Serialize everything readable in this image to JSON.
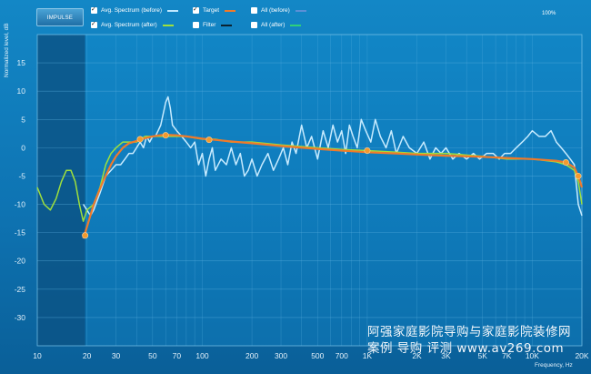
{
  "toolbar": {
    "impulse_label": "IMPULSE",
    "zoom_label": "100%"
  },
  "legend": [
    {
      "label": "Avg. Spectrum (before)",
      "checked": true,
      "color": "#bfe8ff"
    },
    {
      "label": "Target",
      "checked": true,
      "color": "#f07a2a"
    },
    {
      "label": "All (before)",
      "checked": false,
      "color": "#5b8fd6"
    },
    {
      "label": "Avg. Spectrum (after)",
      "checked": true,
      "color": "#9fe03c"
    },
    {
      "label": "Filter",
      "checked": false,
      "color": "#0a2230"
    },
    {
      "label": "All (after)",
      "checked": false,
      "color": "#2fd07a"
    }
  ],
  "watermark": {
    "line1": "阿强家庭影院导购与家庭影院装修网",
    "line2": "案例 导购 评测 www.av269.com"
  },
  "chart_data": {
    "type": "line",
    "xscale": "log",
    "xlim": [
      10,
      20000
    ],
    "ylim": [
      -35,
      20
    ],
    "grid": true,
    "xlabel": "Frequency, Hz",
    "ylabel": "Normalized level, dB",
    "xticks": [
      {
        "v": 10,
        "label": "10"
      },
      {
        "v": 20,
        "label": "20"
      },
      {
        "v": 30,
        "label": "30"
      },
      {
        "v": 50,
        "label": "50"
      },
      {
        "v": 70,
        "label": "70"
      },
      {
        "v": 100,
        "label": "100"
      },
      {
        "v": 200,
        "label": "200"
      },
      {
        "v": 300,
        "label": "300"
      },
      {
        "v": 500,
        "label": "500"
      },
      {
        "v": 700,
        "label": "700"
      },
      {
        "v": 1000,
        "label": "1K"
      },
      {
        "v": 2000,
        "label": "2K"
      },
      {
        "v": 3000,
        "label": "3K"
      },
      {
        "v": 5000,
        "label": "5K"
      },
      {
        "v": 7000,
        "label": "7K"
      },
      {
        "v": 10000,
        "label": "10K"
      },
      {
        "v": 20000,
        "label": "20K"
      }
    ],
    "yticks": [
      {
        "v": 15,
        "label": "15"
      },
      {
        "v": 10,
        "label": "10"
      },
      {
        "v": 5,
        "label": "5"
      },
      {
        "v": 0,
        "label": "0"
      },
      {
        "v": -5,
        "label": "-5"
      },
      {
        "v": -10,
        "label": "-10"
      },
      {
        "v": -15,
        "label": "-15"
      },
      {
        "v": -20,
        "label": "-20"
      },
      {
        "v": -25,
        "label": "-25"
      },
      {
        "v": -30,
        "label": "-30"
      }
    ],
    "excluded_ranges": [
      [
        10,
        19.5
      ]
    ],
    "series": [
      {
        "name": "Avg. Spectrum (before)",
        "color": "#c7ebff",
        "x": [
          19,
          20,
          21,
          22,
          24,
          26,
          28,
          30,
          32,
          34,
          36,
          38,
          40,
          42,
          44,
          46,
          48,
          50,
          52,
          54,
          56,
          58,
          60,
          62,
          64,
          66,
          70,
          75,
          80,
          85,
          90,
          95,
          100,
          105,
          110,
          115,
          120,
          130,
          140,
          150,
          160,
          170,
          180,
          190,
          200,
          215,
          230,
          250,
          270,
          290,
          310,
          330,
          350,
          370,
          400,
          430,
          460,
          500,
          540,
          580,
          620,
          660,
          700,
          740,
          780,
          820,
          870,
          920,
          980,
          1050,
          1120,
          1200,
          1300,
          1400,
          1500,
          1650,
          1800,
          2000,
          2200,
          2400,
          2600,
          2800,
          3000,
          3300,
          3600,
          4000,
          4400,
          4800,
          5300,
          5800,
          6300,
          6800,
          7400,
          8000,
          8700,
          9400,
          10000,
          11000,
          12000,
          13000,
          14000,
          15000,
          16000,
          17000,
          18000,
          19000,
          20000
        ],
        "y": [
          -10,
          -11,
          -12,
          -11,
          -8,
          -5,
          -4,
          -3,
          -3,
          -2,
          -1,
          -1,
          0,
          1,
          0,
          2,
          1,
          2,
          2,
          3,
          4,
          6,
          8,
          9,
          7,
          4,
          3,
          2,
          1,
          0,
          1,
          -3,
          -1,
          -5,
          -2,
          0,
          -4,
          -2,
          -3,
          0,
          -3,
          -1,
          -5,
          -4,
          -2,
          -5,
          -3,
          -1,
          -4,
          -2,
          0,
          -3,
          1,
          -1,
          4,
          0,
          2,
          -2,
          3,
          0,
          4,
          1,
          3,
          -1,
          4,
          2,
          0,
          5,
          3,
          1,
          5,
          2,
          0,
          3,
          -1,
          2,
          0,
          -1,
          1,
          -2,
          0,
          -1,
          0,
          -2,
          -1,
          -2,
          -1,
          -2,
          -1,
          -1,
          -2,
          -1,
          -1,
          0,
          1,
          2,
          3,
          2,
          2,
          3,
          1,
          0,
          -1,
          -2,
          -3,
          -10,
          -12
        ]
      },
      {
        "name": "Avg. Spectrum (after)",
        "color": "#9fe03c",
        "x": [
          10,
          11,
          12,
          13,
          14,
          15,
          16,
          17,
          18,
          19,
          20,
          22,
          24,
          26,
          28,
          30,
          33,
          36,
          40,
          45,
          50,
          55,
          60,
          70,
          80,
          100,
          120,
          150,
          200,
          300,
          500,
          700,
          1000,
          1500,
          2000,
          3000,
          5000,
          7000,
          10000,
          14000,
          16000,
          18000,
          19000,
          20000
        ],
        "y": [
          -7,
          -10,
          -11,
          -9,
          -6,
          -4,
          -4,
          -6,
          -10,
          -13,
          -11,
          -10,
          -7,
          -3,
          -1,
          0,
          1,
          1,
          1,
          2,
          2,
          2,
          2,
          2,
          2,
          1.5,
          1.5,
          1,
          1,
          0.5,
          0,
          -0.3,
          -0.5,
          -0.8,
          -1,
          -1,
          -1.5,
          -2,
          -2,
          -2.5,
          -3,
          -4,
          -6,
          -10
        ]
      },
      {
        "name": "Target",
        "color": "#f07a2a",
        "x": [
          19,
          20,
          22,
          25,
          28,
          30,
          33,
          36,
          40,
          45,
          50,
          55,
          60,
          70,
          80,
          100,
          120,
          150,
          200,
          300,
          500,
          700,
          1000,
          1500,
          2000,
          3000,
          5000,
          7000,
          10000,
          14000,
          16000,
          18000,
          19000,
          20000
        ],
        "y": [
          -16,
          -14,
          -10,
          -6,
          -3,
          -1.5,
          0,
          0.8,
          1.2,
          1.7,
          2,
          2.2,
          2.3,
          2.2,
          2,
          1.6,
          1.4,
          1.1,
          0.8,
          0.3,
          -0.2,
          -0.5,
          -0.8,
          -1,
          -1.2,
          -1.4,
          -1.6,
          -1.8,
          -2,
          -2.3,
          -2.6,
          -3.5,
          -5,
          -7
        ]
      }
    ],
    "target_points": [
      {
        "x": 19.5,
        "y": -15.5
      },
      {
        "x": 42,
        "y": 1.5
      },
      {
        "x": 60,
        "y": 2.2
      },
      {
        "x": 110,
        "y": 1.4
      },
      {
        "x": 1000,
        "y": -0.5
      },
      {
        "x": 16000,
        "y": -2.6
      },
      {
        "x": 19000,
        "y": -5
      }
    ],
    "target_point_color": "#f29a2e"
  }
}
